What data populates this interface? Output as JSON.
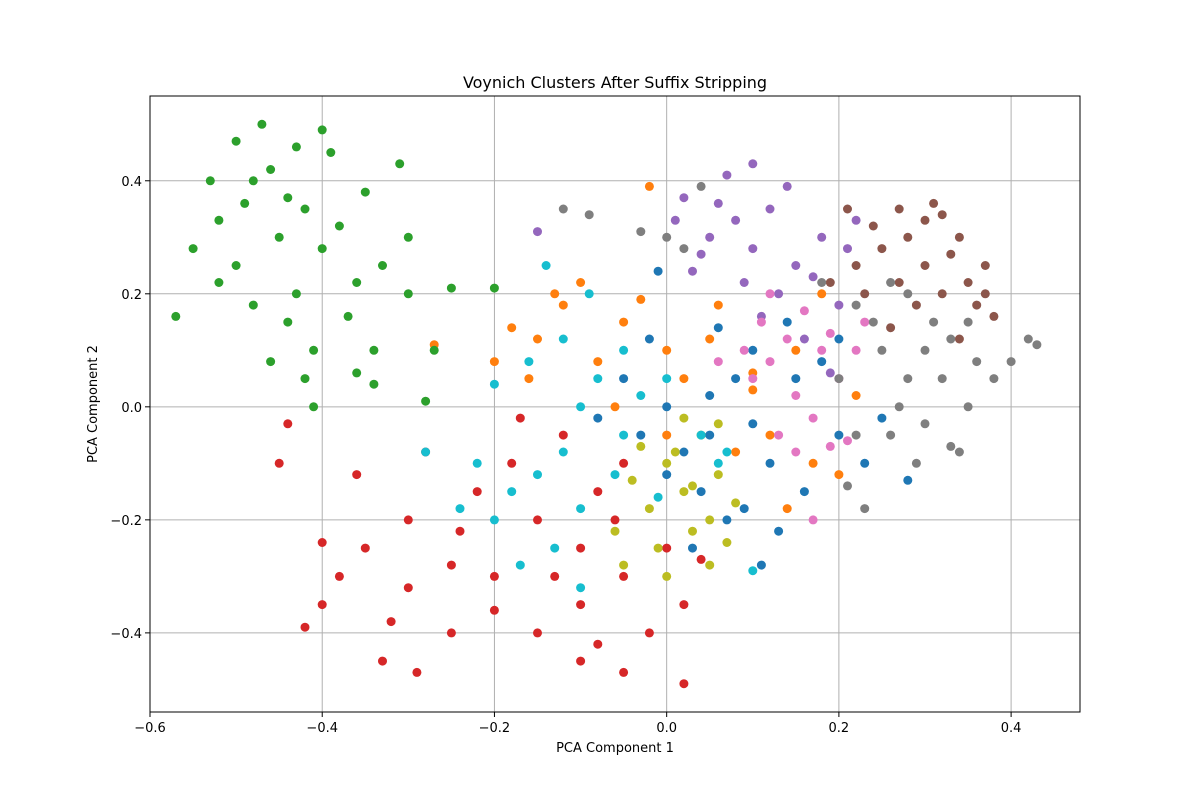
{
  "chart_data": {
    "type": "scatter",
    "title": "Voynich Clusters After Suffix Stripping",
    "xlabel": "PCA Component 1",
    "ylabel": "PCA Component 2",
    "xlim": [
      -0.6,
      0.48
    ],
    "ylim": [
      -0.54,
      0.55
    ],
    "x_ticks": [
      -0.6,
      -0.4,
      -0.2,
      0.0,
      0.2,
      0.4
    ],
    "x_tick_labels": [
      "−0.6",
      "−0.4",
      "−0.2",
      "0.0",
      "0.2",
      "0.4"
    ],
    "y_ticks": [
      -0.4,
      -0.2,
      0.0,
      0.2,
      0.4
    ],
    "y_tick_labels": [
      "−0.4",
      "−0.2",
      "0.0",
      "0.2",
      "0.4"
    ],
    "grid": true,
    "legend": "none",
    "series": [
      {
        "color": "#1f77b4",
        "points": [
          [
            0.0,
            0.0
          ],
          [
            0.05,
            0.02
          ],
          [
            0.1,
            -0.03
          ],
          [
            0.02,
            -0.08
          ],
          [
            -0.03,
            -0.05
          ],
          [
            0.08,
            0.05
          ],
          [
            0.12,
            -0.1
          ],
          [
            0.15,
            0.05
          ],
          [
            0.04,
            -0.15
          ],
          [
            0.0,
            -0.12
          ],
          [
            0.1,
            0.1
          ],
          [
            -0.05,
            0.05
          ],
          [
            0.07,
            -0.2
          ],
          [
            0.13,
            -0.22
          ],
          [
            0.2,
            -0.05
          ],
          [
            0.18,
            0.08
          ],
          [
            -0.02,
            0.12
          ],
          [
            0.06,
            0.14
          ],
          [
            0.03,
            -0.25
          ],
          [
            0.11,
            -0.28
          ],
          [
            0.23,
            -0.1
          ],
          [
            0.09,
            -0.18
          ],
          [
            -0.08,
            -0.02
          ],
          [
            0.16,
            -0.15
          ],
          [
            0.25,
            -0.02
          ],
          [
            0.28,
            -0.13
          ],
          [
            0.14,
            0.15
          ],
          [
            -0.01,
            0.24
          ],
          [
            0.2,
            0.12
          ],
          [
            0.05,
            -0.05
          ]
        ]
      },
      {
        "color": "#ff7f0e",
        "points": [
          [
            -0.15,
            0.12
          ],
          [
            -0.12,
            0.18
          ],
          [
            -0.1,
            0.22
          ],
          [
            -0.05,
            0.15
          ],
          [
            0.0,
            0.1
          ],
          [
            0.05,
            0.12
          ],
          [
            -0.2,
            0.08
          ],
          [
            -0.16,
            0.05
          ],
          [
            -0.08,
            0.08
          ],
          [
            0.02,
            0.05
          ],
          [
            0.1,
            0.06
          ],
          [
            0.15,
            0.1
          ],
          [
            0.12,
            -0.05
          ],
          [
            0.17,
            -0.1
          ],
          [
            0.2,
            -0.12
          ],
          [
            0.22,
            0.02
          ],
          [
            -0.27,
            0.11
          ],
          [
            -0.18,
            0.14
          ],
          [
            0.08,
            -0.08
          ],
          [
            0.0,
            -0.05
          ],
          [
            -0.03,
            0.19
          ],
          [
            0.14,
            -0.18
          ],
          [
            0.18,
            0.2
          ],
          [
            -0.13,
            0.2
          ],
          [
            -0.02,
            0.39
          ],
          [
            0.1,
            0.03
          ],
          [
            0.06,
            0.18
          ],
          [
            -0.06,
            0.0
          ]
        ]
      },
      {
        "color": "#2ca02c",
        "points": [
          [
            -0.45,
            0.3
          ],
          [
            -0.42,
            0.35
          ],
          [
            -0.48,
            0.4
          ],
          [
            -0.5,
            0.25
          ],
          [
            -0.4,
            0.28
          ],
          [
            -0.43,
            0.2
          ],
          [
            -0.38,
            0.32
          ],
          [
            -0.46,
            0.42
          ],
          [
            -0.52,
            0.33
          ],
          [
            -0.44,
            0.15
          ],
          [
            -0.36,
            0.22
          ],
          [
            -0.35,
            0.38
          ],
          [
            -0.5,
            0.47
          ],
          [
            -0.47,
            0.5
          ],
          [
            -0.55,
            0.28
          ],
          [
            -0.57,
            0.16
          ],
          [
            -0.41,
            0.1
          ],
          [
            -0.39,
            0.45
          ],
          [
            -0.33,
            0.25
          ],
          [
            -0.3,
            0.2
          ],
          [
            -0.34,
            0.1
          ],
          [
            -0.42,
            0.05
          ],
          [
            -0.48,
            0.18
          ],
          [
            -0.53,
            0.4
          ],
          [
            -0.46,
            0.08
          ],
          [
            -0.4,
            0.49
          ],
          [
            -0.3,
            0.3
          ],
          [
            -0.27,
            0.1
          ],
          [
            -0.37,
            0.16
          ],
          [
            -0.44,
            0.37
          ],
          [
            -0.49,
            0.36
          ],
          [
            -0.36,
            0.06
          ],
          [
            -0.25,
            0.21
          ],
          [
            -0.31,
            0.43
          ],
          [
            -0.43,
            0.46
          ],
          [
            -0.52,
            0.22
          ],
          [
            -0.41,
            0.0
          ],
          [
            -0.34,
            0.04
          ],
          [
            -0.28,
            0.01
          ],
          [
            -0.2,
            0.21
          ]
        ]
      },
      {
        "color": "#d62728",
        "points": [
          [
            -0.15,
            -0.2
          ],
          [
            -0.1,
            -0.25
          ],
          [
            -0.2,
            -0.3
          ],
          [
            -0.25,
            -0.28
          ],
          [
            -0.3,
            -0.32
          ],
          [
            -0.05,
            -0.3
          ],
          [
            -0.1,
            -0.35
          ],
          [
            0.0,
            -0.25
          ],
          [
            -0.08,
            -0.15
          ],
          [
            -0.18,
            -0.1
          ],
          [
            -0.12,
            -0.05
          ],
          [
            -0.3,
            -0.2
          ],
          [
            -0.35,
            -0.25
          ],
          [
            -0.38,
            -0.3
          ],
          [
            -0.32,
            -0.38
          ],
          [
            -0.25,
            -0.4
          ],
          [
            -0.2,
            -0.36
          ],
          [
            -0.15,
            -0.4
          ],
          [
            -0.08,
            -0.42
          ],
          [
            -0.02,
            -0.4
          ],
          [
            0.02,
            -0.35
          ],
          [
            -0.22,
            -0.15
          ],
          [
            -0.28,
            -0.08
          ],
          [
            -0.4,
            -0.35
          ],
          [
            -0.42,
            -0.39
          ],
          [
            -0.33,
            -0.45
          ],
          [
            -0.29,
            -0.47
          ],
          [
            -0.05,
            -0.47
          ],
          [
            0.02,
            -0.49
          ],
          [
            -0.1,
            -0.45
          ],
          [
            -0.45,
            -0.1
          ],
          [
            -0.44,
            -0.03
          ],
          [
            -0.17,
            -0.02
          ],
          [
            -0.05,
            -0.1
          ],
          [
            -0.24,
            -0.22
          ],
          [
            -0.13,
            -0.3
          ],
          [
            -0.36,
            -0.12
          ],
          [
            -0.4,
            -0.24
          ],
          [
            0.04,
            -0.27
          ],
          [
            -0.06,
            -0.2
          ]
        ]
      },
      {
        "color": "#9467bd",
        "points": [
          [
            0.05,
            0.3
          ],
          [
            0.08,
            0.33
          ],
          [
            0.1,
            0.28
          ],
          [
            0.12,
            0.35
          ],
          [
            0.06,
            0.36
          ],
          [
            0.02,
            0.37
          ],
          [
            0.15,
            0.25
          ],
          [
            0.13,
            0.2
          ],
          [
            0.09,
            0.22
          ],
          [
            0.04,
            0.27
          ],
          [
            0.18,
            0.3
          ],
          [
            0.2,
            0.18
          ],
          [
            0.17,
            0.23
          ],
          [
            0.07,
            0.41
          ],
          [
            0.1,
            0.43
          ],
          [
            0.14,
            0.39
          ],
          [
            -0.15,
            0.31
          ],
          [
            0.01,
            0.33
          ],
          [
            0.11,
            0.16
          ],
          [
            0.16,
            0.12
          ],
          [
            0.19,
            0.06
          ],
          [
            0.03,
            0.24
          ],
          [
            0.21,
            0.28
          ],
          [
            0.22,
            0.33
          ]
        ]
      },
      {
        "color": "#8c564b",
        "points": [
          [
            0.25,
            0.28
          ],
          [
            0.28,
            0.3
          ],
          [
            0.3,
            0.25
          ],
          [
            0.32,
            0.2
          ],
          [
            0.27,
            0.22
          ],
          [
            0.22,
            0.25
          ],
          [
            0.24,
            0.32
          ],
          [
            0.3,
            0.33
          ],
          [
            0.33,
            0.27
          ],
          [
            0.35,
            0.22
          ],
          [
            0.36,
            0.18
          ],
          [
            0.34,
            0.12
          ],
          [
            0.29,
            0.18
          ],
          [
            0.23,
            0.2
          ],
          [
            0.21,
            0.35
          ],
          [
            0.27,
            0.35
          ],
          [
            0.31,
            0.36
          ],
          [
            0.34,
            0.3
          ],
          [
            0.37,
            0.25
          ],
          [
            0.37,
            0.2
          ],
          [
            0.26,
            0.14
          ],
          [
            0.19,
            0.22
          ],
          [
            0.32,
            0.34
          ],
          [
            0.38,
            0.16
          ]
        ]
      },
      {
        "color": "#e377c2",
        "points": [
          [
            0.1,
            0.05
          ],
          [
            0.12,
            0.08
          ],
          [
            0.15,
            0.02
          ],
          [
            0.18,
            0.1
          ],
          [
            0.11,
            0.15
          ],
          [
            0.14,
            0.12
          ],
          [
            0.17,
            -0.02
          ],
          [
            0.2,
            0.05
          ],
          [
            0.13,
            -0.05
          ],
          [
            0.09,
            0.1
          ],
          [
            0.16,
            0.17
          ],
          [
            0.19,
            0.13
          ],
          [
            0.22,
            0.1
          ],
          [
            0.21,
            -0.06
          ],
          [
            0.15,
            -0.08
          ],
          [
            0.06,
            0.08
          ],
          [
            0.17,
            -0.2
          ],
          [
            0.19,
            -0.07
          ],
          [
            0.12,
            0.2
          ],
          [
            0.23,
            0.15
          ]
        ]
      },
      {
        "color": "#7f7f7f",
        "points": [
          [
            0.25,
            0.1
          ],
          [
            0.28,
            0.05
          ],
          [
            0.3,
            0.1
          ],
          [
            0.27,
            0.0
          ],
          [
            0.32,
            0.05
          ],
          [
            0.3,
            -0.03
          ],
          [
            0.33,
            0.12
          ],
          [
            0.26,
            -0.05
          ],
          [
            0.35,
            0.0
          ],
          [
            0.31,
            0.15
          ],
          [
            0.24,
            0.15
          ],
          [
            0.28,
            0.2
          ],
          [
            0.35,
            0.15
          ],
          [
            0.33,
            -0.07
          ],
          [
            0.22,
            -0.05
          ],
          [
            0.36,
            0.08
          ],
          [
            0.38,
            0.05
          ],
          [
            0.42,
            0.12
          ],
          [
            0.43,
            0.11
          ],
          [
            0.4,
            0.08
          ],
          [
            0.29,
            -0.1
          ],
          [
            0.34,
            -0.08
          ],
          [
            0.23,
            -0.18
          ],
          [
            0.22,
            0.18
          ],
          [
            0.26,
            0.22
          ],
          [
            -0.12,
            0.35
          ],
          [
            -0.09,
            0.34
          ],
          [
            0.0,
            0.3
          ],
          [
            -0.03,
            0.31
          ],
          [
            0.04,
            0.39
          ],
          [
            0.02,
            0.28
          ],
          [
            0.2,
            0.05
          ],
          [
            0.18,
            0.22
          ],
          [
            0.21,
            -0.14
          ]
        ]
      },
      {
        "color": "#bcbd22",
        "points": [
          [
            0.0,
            -0.1
          ],
          [
            0.02,
            -0.15
          ],
          [
            0.05,
            -0.2
          ],
          [
            -0.02,
            -0.18
          ],
          [
            0.03,
            -0.22
          ],
          [
            0.01,
            -0.08
          ],
          [
            0.06,
            -0.12
          ],
          [
            -0.04,
            -0.13
          ],
          [
            0.04,
            -0.05
          ],
          [
            -0.01,
            -0.25
          ],
          [
            0.07,
            -0.24
          ],
          [
            -0.06,
            -0.22
          ],
          [
            0.0,
            -0.3
          ],
          [
            0.05,
            -0.28
          ],
          [
            -0.05,
            -0.28
          ],
          [
            0.02,
            -0.02
          ],
          [
            0.03,
            -0.14
          ],
          [
            -0.03,
            -0.07
          ],
          [
            0.08,
            -0.17
          ],
          [
            0.06,
            -0.03
          ]
        ]
      },
      {
        "color": "#17becf",
        "points": [
          [
            -0.1,
            0.0
          ],
          [
            -0.05,
            -0.05
          ],
          [
            0.0,
            0.05
          ],
          [
            -0.12,
            -0.08
          ],
          [
            -0.15,
            -0.12
          ],
          [
            -0.08,
            0.05
          ],
          [
            -0.18,
            -0.15
          ],
          [
            -0.2,
            -0.2
          ],
          [
            -0.13,
            -0.25
          ],
          [
            -0.1,
            -0.18
          ],
          [
            -0.03,
            0.02
          ],
          [
            -0.14,
            0.25
          ],
          [
            -0.09,
            0.2
          ],
          [
            -0.16,
            0.08
          ],
          [
            -0.2,
            0.04
          ],
          [
            -0.22,
            -0.1
          ],
          [
            -0.28,
            -0.08
          ],
          [
            -0.24,
            -0.18
          ],
          [
            -0.17,
            -0.28
          ],
          [
            -0.1,
            -0.32
          ],
          [
            0.04,
            -0.05
          ],
          [
            0.07,
            -0.08
          ],
          [
            0.1,
            -0.29
          ],
          [
            0.06,
            -0.1
          ],
          [
            -0.06,
            -0.12
          ],
          [
            -0.01,
            -0.16
          ],
          [
            -0.12,
            0.12
          ],
          [
            -0.05,
            0.1
          ]
        ]
      }
    ]
  }
}
